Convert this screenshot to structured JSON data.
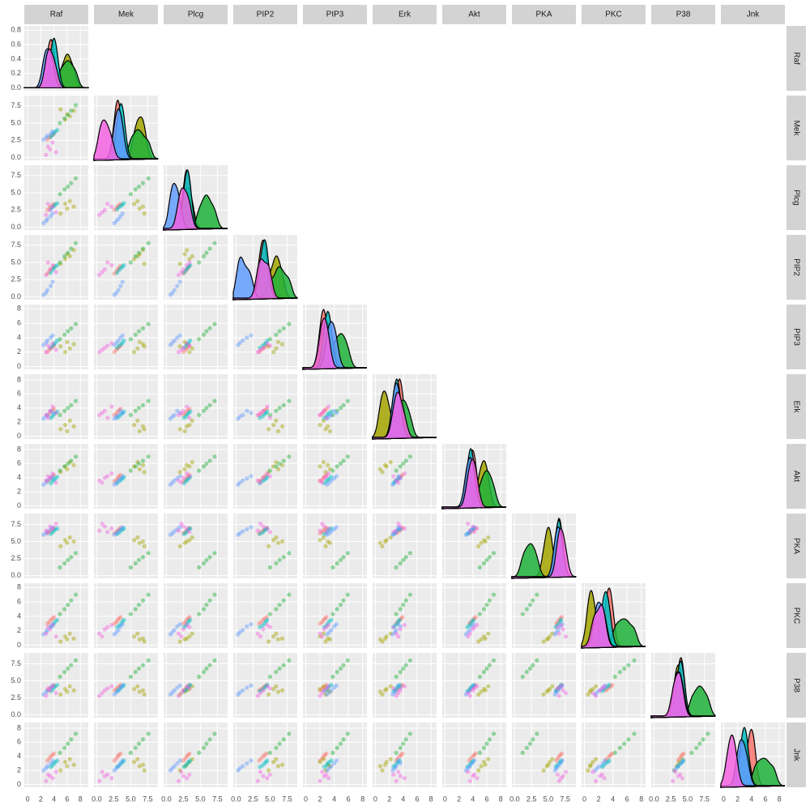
{
  "chart_data": {
    "type": "pairs",
    "density_lim": [
      -0.04,
      0.86
    ],
    "density_ticks": [
      {
        "value": 0,
        "label": "0.0"
      },
      0.2,
      0.4,
      0.6,
      0.8
    ],
    "variables": [
      {
        "name": "Raf",
        "lim": [
          -0.5,
          9.2
        ],
        "ticks": [
          0,
          2,
          4,
          6,
          8
        ]
      },
      {
        "name": "Mek",
        "lim": [
          -0.4,
          9.0
        ],
        "ticks": [
          {
            "value": 0,
            "label": "0.0"
          },
          2.5,
          {
            "value": 5,
            "label": "5.0"
          },
          7.5
        ]
      },
      {
        "name": "Plcg",
        "lim": [
          -0.4,
          9.0
        ],
        "ticks": [
          {
            "value": 0,
            "label": "0.0"
          },
          2.5,
          {
            "value": 5,
            "label": "5.0"
          },
          7.5
        ]
      },
      {
        "name": "PIP2",
        "lim": [
          -0.4,
          9.0
        ],
        "ticks": [
          {
            "value": 0,
            "label": "0.0"
          },
          2.5,
          {
            "value": 5,
            "label": "5.0"
          },
          7.5
        ]
      },
      {
        "name": "PIP3",
        "lim": [
          -0.4,
          8.6
        ],
        "ticks": [
          0,
          2,
          4,
          6,
          8
        ]
      },
      {
        "name": "Erk",
        "lim": [
          -0.4,
          8.8
        ],
        "ticks": [
          0,
          2,
          4,
          6,
          8
        ]
      },
      {
        "name": "Akt",
        "lim": [
          -0.4,
          8.8
        ],
        "ticks": [
          0,
          2,
          4,
          6,
          8
        ]
      },
      {
        "name": "PKA",
        "lim": [
          -0.4,
          9.1
        ],
        "ticks": [
          {
            "value": 0,
            "label": "0.0"
          },
          2.5,
          {
            "value": 5,
            "label": "5.0"
          },
          7.5
        ]
      },
      {
        "name": "PKC",
        "lim": [
          -0.4,
          8.6
        ],
        "ticks": [
          0,
          2,
          4,
          6,
          8
        ]
      },
      {
        "name": "P38",
        "lim": [
          -0.4,
          9.1
        ],
        "ticks": [
          {
            "value": 0,
            "label": "0.0"
          },
          2.5,
          {
            "value": 5,
            "label": "5.0"
          },
          7.5
        ]
      },
      {
        "name": "Jnk",
        "lim": [
          -0.4,
          8.8
        ],
        "ticks": [
          0,
          2,
          4,
          6,
          8
        ]
      }
    ],
    "series": [
      {
        "color": "#F8766D",
        "values": [
          [
            3.0,
            3.5,
            4.0,
            3.3,
            3.8
          ],
          [
            2.6,
            3.1,
            3.5,
            2.9,
            3.3
          ],
          [
            2.5,
            3.0,
            3.4,
            2.8,
            3.2
          ],
          [
            3.4,
            4.0,
            4.5,
            3.7,
            4.2
          ],
          [
            2.0,
            2.5,
            2.9,
            2.3,
            2.7
          ],
          [
            3.0,
            3.5,
            3.9,
            3.2,
            3.7
          ],
          [
            3.5,
            4.0,
            4.4,
            3.7,
            4.2
          ],
          [
            6.2,
            6.6,
            7.0,
            6.4,
            6.8
          ],
          [
            3.0,
            3.5,
            3.9,
            3.2,
            3.7
          ],
          [
            3.6,
            4.0,
            4.4,
            3.8,
            4.2
          ],
          [
            3.4,
            4.0,
            4.4,
            3.7,
            4.2
          ]
        ]
      },
      {
        "color": "#A3A500",
        "values": [
          [
            5.0,
            5.7,
            6.0,
            6.4,
            7.0
          ],
          [
            7.0,
            5.5,
            6.3,
            6.0,
            6.8
          ],
          [
            2.0,
            3.4,
            2.7,
            3.8,
            3.0
          ],
          [
            4.8,
            5.5,
            6.2,
            5.9,
            6.8
          ],
          [
            2.8,
            2.0,
            3.4,
            2.5,
            3.1
          ],
          [
            1.0,
            1.6,
            0.7,
            2.2,
            1.4
          ],
          [
            4.8,
            5.6,
            5.2,
            6.2,
            5.8
          ],
          [
            4.3,
            5.2,
            4.8,
            5.6,
            5.0
          ],
          [
            0.5,
            1.2,
            0.8,
            1.6,
            0.9
          ],
          [
            3.0,
            3.8,
            3.4,
            4.2,
            3.6
          ],
          [
            2.0,
            3.2,
            2.6,
            3.6,
            2.8
          ]
        ]
      },
      {
        "color": "#1FB23A",
        "values": [
          [
            4.9,
            5.6,
            6.1,
            6.6,
            7.3
          ],
          [
            5.0,
            5.7,
            6.2,
            6.8,
            7.6
          ],
          [
            4.8,
            5.5,
            5.9,
            6.4,
            7.1
          ],
          [
            5.0,
            5.9,
            6.4,
            7.0,
            7.8
          ],
          [
            3.8,
            4.4,
            4.9,
            5.3,
            5.9
          ],
          [
            3.0,
            3.6,
            4.0,
            4.4,
            5.0
          ],
          [
            5.0,
            5.6,
            6.0,
            6.4,
            7.0
          ],
          [
            1.2,
            1.8,
            2.3,
            2.7,
            3.3
          ],
          [
            4.3,
            5.0,
            5.6,
            6.2,
            7.0
          ],
          [
            5.6,
            6.3,
            6.8,
            7.3,
            8.0
          ],
          [
            4.5,
            5.2,
            5.8,
            6.4,
            7.2
          ]
        ]
      },
      {
        "color": "#00BFC4",
        "values": [
          [
            3.5,
            4.0,
            4.5,
            3.8,
            4.2
          ],
          [
            3.0,
            3.6,
            4.0,
            3.3,
            3.8
          ],
          [
            2.6,
            3.1,
            3.5,
            2.9,
            3.3
          ],
          [
            3.5,
            4.2,
            4.6,
            3.9,
            4.4
          ],
          [
            2.6,
            3.1,
            3.6,
            2.9,
            3.3
          ],
          [
            2.6,
            3.1,
            3.5,
            2.8,
            3.3
          ],
          [
            3.2,
            3.7,
            4.1,
            3.5,
            3.9
          ],
          [
            6.1,
            6.6,
            6.9,
            6.3,
            6.8
          ],
          [
            2.5,
            3.0,
            3.5,
            2.7,
            3.3
          ],
          [
            3.5,
            4.0,
            4.4,
            3.7,
            4.2
          ],
          [
            2.5,
            3.0,
            3.4,
            2.7,
            3.2
          ]
        ]
      },
      {
        "color": "#619CFF",
        "values": [
          [
            2.4,
            3.0,
            3.5,
            2.8,
            3.8
          ],
          [
            2.6,
            3.2,
            3.5,
            2.9,
            3.8
          ],
          [
            0.6,
            1.2,
            1.6,
            0.9,
            2.0
          ],
          [
            0.3,
            1.0,
            1.6,
            0.6,
            2.2
          ],
          [
            3.0,
            3.6,
            4.0,
            3.3,
            4.3
          ],
          [
            2.5,
            3.0,
            3.6,
            2.8,
            3.3
          ],
          [
            3.0,
            3.6,
            3.9,
            3.3,
            4.2
          ],
          [
            6.0,
            6.5,
            6.8,
            6.2,
            7.1
          ],
          [
            1.5,
            2.1,
            2.6,
            1.8,
            2.9
          ],
          [
            3.0,
            3.6,
            4.0,
            3.3,
            4.3
          ],
          [
            2.0,
            2.6,
            3.0,
            2.3,
            3.4
          ]
        ]
      },
      {
        "color": "#F564E3",
        "values": [
          [
            2.8,
            3.4,
            3.8,
            4.3,
            3.1
          ],
          [
            0.4,
            1.2,
            2.2,
            0.8,
            1.6
          ],
          [
            1.8,
            2.5,
            3.0,
            2.2,
            3.4
          ],
          [
            3.2,
            4.0,
            4.6,
            3.6,
            5.0
          ],
          [
            2.0,
            2.6,
            3.2,
            2.3,
            2.9
          ],
          [
            3.0,
            3.6,
            4.2,
            3.3,
            2.6
          ],
          [
            3.6,
            4.0,
            4.6,
            3.3,
            4.2
          ],
          [
            6.6,
            7.2,
            6.9,
            7.6,
            6.4
          ],
          [
            1.6,
            2.2,
            2.8,
            1.2,
            2.5
          ],
          [
            2.8,
            3.6,
            4.2,
            3.2,
            3.9
          ],
          [
            0.5,
            1.2,
            0.9,
            1.8,
            1.4
          ]
        ]
      }
    ]
  }
}
